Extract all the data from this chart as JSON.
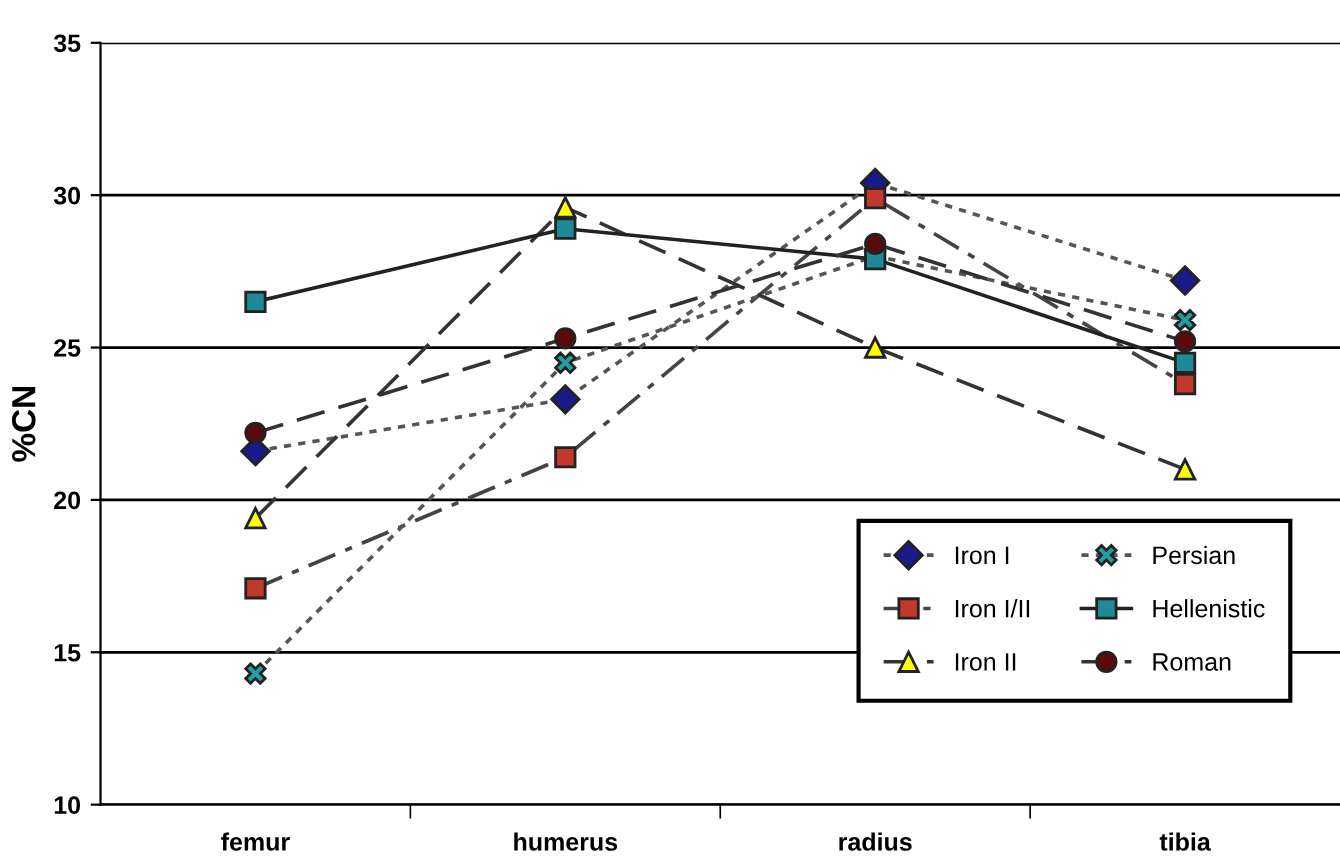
{
  "chart_data": {
    "type": "line",
    "ylabel": "%CN",
    "categories": [
      "femur",
      "humerus",
      "radius",
      "tibia"
    ],
    "ylim": [
      10,
      35
    ],
    "yticks": [
      10,
      15,
      20,
      25,
      30,
      35
    ],
    "grid": "y",
    "legend": "bottom right",
    "series": [
      {
        "name": "Iron I",
        "color": "#1a1a8c",
        "marker": "diamond",
        "line_style": "dotted",
        "values": [
          21.6,
          23.3,
          30.4,
          27.2
        ]
      },
      {
        "name": "Iron I/II",
        "color": "#c0392b",
        "marker": "square",
        "line_style": "dashdot",
        "values": [
          17.1,
          21.4,
          29.9,
          23.8
        ]
      },
      {
        "name": "Iron II",
        "color": "#ffff00",
        "marker": "triangle",
        "line_style": "dashed",
        "values": [
          19.4,
          29.6,
          25.0,
          21.0
        ]
      },
      {
        "name": "Persian",
        "color": "#20a0a0",
        "marker": "cross",
        "line_style": "dotted",
        "values": [
          14.3,
          24.5,
          28.0,
          25.9
        ]
      },
      {
        "name": "Hellenistic",
        "color": "#1e8a96",
        "marker": "square",
        "line_style": "solid",
        "values": [
          26.5,
          28.9,
          27.9,
          24.5
        ]
      },
      {
        "name": "Roman",
        "color": "#5a0a0a",
        "marker": "circle",
        "line_style": "dashed",
        "values": [
          22.2,
          25.3,
          28.4,
          25.2
        ]
      }
    ]
  }
}
